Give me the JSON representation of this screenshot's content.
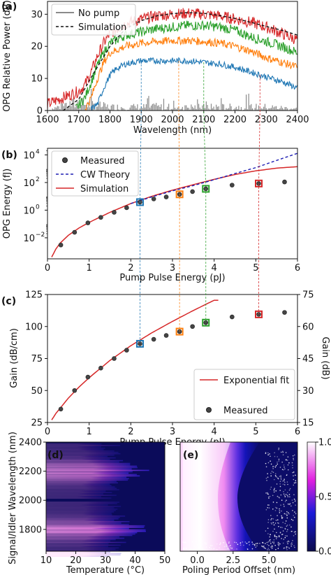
{
  "colors": {
    "gray": "#8a8a8a",
    "black": "#111111",
    "red": "#d62728",
    "green": "#2ca02c",
    "orange": "#ff7f0e",
    "blue": "#1f77b4",
    "theory": "#1f1fb4",
    "marker": "#444444"
  },
  "chart_data": [
    {
      "type": "line",
      "panel": "(a)",
      "xlabel": "Wavelength (nm)",
      "ylabel": "OPG Relative Power (dB)",
      "xlim": [
        1600,
        2400
      ],
      "ylim": [
        0,
        34
      ],
      "xticks": [
        1600,
        1700,
        1800,
        1900,
        2000,
        2100,
        2200,
        2300,
        2400
      ],
      "yticks": [
        0,
        10,
        20,
        30
      ],
      "legend": [
        "No pump",
        "Simulation"
      ],
      "legend_position": "top-left",
      "series": [
        {
          "name": "No pump",
          "x": [
            1600,
            1650,
            1700,
            1750,
            1800,
            1900,
            2000,
            2100,
            2200,
            2300,
            2400
          ],
          "y": [
            0,
            1.5,
            2,
            1.5,
            1,
            1,
            1,
            1,
            1,
            1,
            0.5
          ]
        },
        {
          "name": "Simulation",
          "x": [
            1650,
            1700,
            1750,
            1800,
            1850,
            1900,
            1950,
            2000,
            2050,
            2100,
            2150,
            2200,
            2250,
            2300,
            2350,
            2400
          ],
          "y": [
            0,
            3.5,
            12,
            20,
            25.5,
            28,
            29.5,
            30.2,
            30.5,
            30.3,
            29.6,
            28.7,
            27.5,
            26.2,
            25,
            23.5
          ]
        },
        {
          "x": [
            1600,
            1650,
            1700,
            1720,
            1740,
            1760,
            1780,
            1800,
            1850,
            1900,
            1950,
            2000,
            2050,
            2100,
            2150,
            2200,
            2250,
            2300,
            2350,
            2400
          ],
          "y": [
            2,
            4,
            6,
            8,
            12,
            17,
            21,
            24,
            27,
            28.5,
            29.5,
            30,
            30.3,
            30,
            29.5,
            28.5,
            27.5,
            26,
            24,
            22
          ]
        },
        {
          "x": [
            1690,
            1720,
            1740,
            1760,
            1780,
            1800,
            1850,
            1900,
            1950,
            2000,
            2050,
            2100,
            2150,
            2200,
            2250,
            2300,
            2350,
            2400
          ],
          "y": [
            0.5,
            4,
            9,
            14,
            18,
            21,
            23.5,
            24.5,
            25.5,
            26,
            26.5,
            26.5,
            26,
            25,
            23,
            21.5,
            20,
            18
          ]
        },
        {
          "x": [
            1720,
            1740,
            1760,
            1780,
            1800,
            1850,
            1900,
            1950,
            2000,
            2050,
            2100,
            2150,
            2200,
            2250,
            2300,
            2350,
            2400
          ],
          "y": [
            0.5,
            4,
            10,
            15,
            18,
            20,
            21,
            21.5,
            21.8,
            21.8,
            21.5,
            21,
            20,
            18.5,
            16.5,
            15,
            13.5
          ]
        },
        {
          "x": [
            1740,
            1760,
            1780,
            1800,
            1820,
            1850,
            1900,
            1950,
            2000,
            2050,
            2100,
            2150,
            2200,
            2250,
            2300,
            2350,
            2400
          ],
          "y": [
            0.5,
            2,
            7,
            11,
            13,
            14.5,
            15.5,
            15.5,
            15.5,
            15.5,
            15,
            14.5,
            13.5,
            12,
            10.5,
            9,
            7
          ]
        }
      ]
    },
    {
      "type": "line",
      "panel": "(b)",
      "xlabel": "Pump Pulse Energy (pJ)",
      "ylabel": "OPG Energy (fJ)",
      "xlim": [
        0,
        6
      ],
      "ylim": [
        0.0003,
        30000
      ],
      "yscale": "log",
      "xticks": [
        0,
        1,
        2,
        3,
        4,
        5,
        6
      ],
      "yticks": [
        "10^-2",
        "10^0",
        "10^2",
        "10^4"
      ],
      "legend": [
        "Measured",
        "CW Theory",
        "Simulation"
      ],
      "legend_position": "top-left",
      "series": [
        {
          "name": "Measured",
          "x": [
            0.32,
            0.65,
            0.97,
            1.28,
            1.6,
            1.9,
            2.22,
            2.55,
            2.85,
            3.17,
            3.48,
            3.8,
            4.43,
            5.07,
            5.69
          ],
          "y": [
            0.003,
            0.025,
            0.12,
            0.3,
            0.7,
            1.5,
            3.8,
            6.5,
            9,
            14,
            22,
            35,
            65,
            85,
            110
          ]
        },
        {
          "name": "CW Theory",
          "x": [
            2,
            2.5,
            3,
            3.5,
            4,
            4.5,
            5,
            5.5,
            6
          ],
          "y": [
            3,
            9,
            25,
            60,
            160,
            450,
            1200,
            4000,
            13000
          ]
        },
        {
          "name": "Simulation",
          "x": [
            0.1,
            0.2,
            0.3,
            0.5,
            0.75,
            1,
            1.5,
            2,
            2.5,
            3,
            3.5,
            4,
            4.5,
            5,
            5.5,
            6
          ],
          "y": [
            0.0004,
            0.0015,
            0.004,
            0.015,
            0.05,
            0.13,
            0.7,
            3,
            10,
            28,
            70,
            170,
            380,
            700,
            1100,
            1400
          ]
        }
      ]
    },
    {
      "type": "line",
      "panel": "(c)",
      "xlabel": "Pump Pulse Energy (pJ)",
      "ylabel": "Gain (dB/cm)",
      "ylabel_right": "Gain (dB)",
      "xlim": [
        0,
        6
      ],
      "ylim": [
        25,
        125
      ],
      "ylim_right": [
        15,
        75
      ],
      "xticks": [
        0,
        1,
        2,
        3,
        4,
        5,
        6
      ],
      "yticks": [
        25,
        50,
        75,
        100,
        125
      ],
      "yticks_right": [
        15,
        30,
        45,
        60,
        75
      ],
      "legend": [
        "Exponential fit",
        "Measured"
      ],
      "legend_position": "bottom-right",
      "series": [
        {
          "name": "Exponential fit",
          "x": [
            0.1,
            0.2,
            0.3,
            0.5,
            0.75,
            1,
            1.5,
            2,
            2.5,
            3,
            3.5,
            4
          ],
          "y": [
            27,
            32,
            36,
            44,
            52.5,
            60,
            73.5,
            85,
            95,
            104,
            112.5,
            120.5
          ]
        },
        {
          "name": "Measured",
          "x": [
            0.32,
            0.65,
            0.97,
            1.28,
            1.6,
            1.9,
            2.22,
            2.55,
            2.85,
            3.17,
            3.48,
            3.8,
            4.43,
            5.07,
            5.69
          ],
          "y": [
            35.5,
            50,
            60.5,
            67.5,
            75,
            81.5,
            86.5,
            90,
            93,
            96,
            100,
            103,
            107.5,
            109.5,
            111
          ]
        }
      ]
    },
    {
      "type": "heatmap",
      "panel": "(d)",
      "xlabel": "Temperature (°C)",
      "ylabel": "Signal/Idler Wavelength (nm)",
      "xlim": [
        10,
        50
      ],
      "ylim": [
        1650,
        2400
      ],
      "xticks": [
        10,
        20,
        30,
        40,
        50
      ],
      "yticks": [
        1800,
        2000,
        2200,
        2400
      ],
      "bands_nm": [
        1800,
        2200
      ],
      "band_temp_limit_c": 32
    },
    {
      "type": "heatmap",
      "panel": "(e)",
      "xlabel": "Poling Period Offset (nm)",
      "xlim": [
        -1.2,
        7
      ],
      "xticks": [
        "0.0",
        "2.5",
        "5.0"
      ],
      "colorbar_ticks": [
        "0.00",
        "0.5",
        "1.0"
      ],
      "colorbar_range": [
        0,
        1
      ]
    }
  ]
}
